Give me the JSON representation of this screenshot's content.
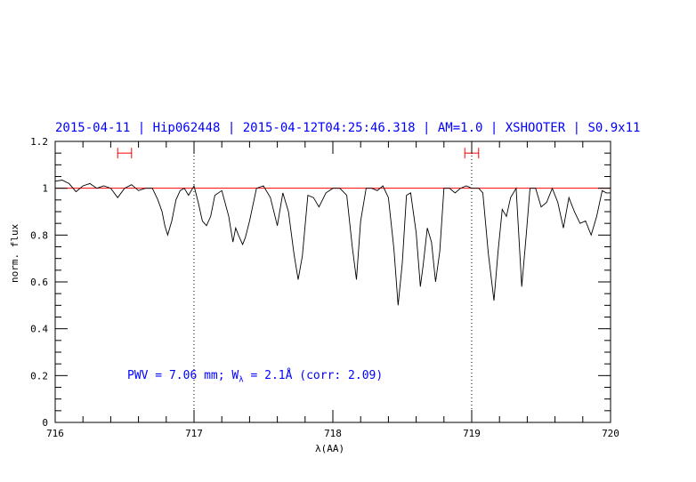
{
  "title": "2015-04-11 | Hip062448 | 2015-04-12T04:25:46.318 | AM=1.0 | XSHOOTER | S0.9x11",
  "annotation": {
    "prefix": "PWV = 7.06 mm; W",
    "subscript": "λ",
    "suffix": " = 2.1Å (corr: 2.09)"
  },
  "colors": {
    "title": "#0000ff",
    "spectrum": "#000000",
    "continuum": "#ff0000",
    "markers": "#ff0000",
    "dotted_lines": "#000000"
  },
  "chart_data": {
    "type": "line",
    "xlabel": "λ(AA)",
    "ylabel": "norm. flux",
    "xlim": [
      716,
      720
    ],
    "ylim": [
      0,
      1.2
    ],
    "xticks": [
      716,
      717,
      718,
      719,
      720
    ],
    "xtick_labels": [
      "716",
      "717",
      "718",
      "719",
      "720"
    ],
    "yticks": [
      0,
      0.2,
      0.4,
      0.6,
      0.8,
      1,
      1.2
    ],
    "ytick_labels": [
      "0",
      "0.2",
      "0.4",
      "0.6",
      "0.8",
      "1",
      "1.2"
    ],
    "reference_line": 1.0,
    "vertical_lines": [
      717,
      719
    ],
    "continuum_intervals": [
      {
        "x": [
          716.45,
          716.55
        ],
        "y": 1.15
      },
      {
        "x": [
          718.95,
          719.05
        ],
        "y": 1.15
      }
    ],
    "series": [
      {
        "x": [
          716.0,
          716.05,
          716.1,
          716.15,
          716.2,
          716.25,
          716.3,
          716.35,
          716.4,
          716.45,
          716.5,
          716.55,
          716.6,
          716.65,
          716.7,
          716.74,
          716.77,
          716.79,
          716.81,
          716.84,
          716.87,
          716.9,
          716.93,
          716.96,
          717.0,
          717.03,
          717.06,
          717.09,
          717.12,
          717.15,
          717.2,
          717.25,
          717.28,
          717.3,
          717.32,
          717.35,
          717.37,
          717.4,
          717.45,
          717.5,
          717.55,
          717.6,
          717.64,
          717.68,
          717.72,
          717.75,
          717.78,
          717.82,
          717.86,
          717.9,
          717.95,
          718.0,
          718.05,
          718.1,
          718.14,
          718.17,
          718.2,
          718.24,
          718.28,
          718.32,
          718.36,
          718.4,
          718.44,
          718.47,
          718.5,
          718.53,
          718.56,
          718.6,
          718.63,
          718.65,
          718.68,
          718.71,
          718.74,
          718.77,
          718.8,
          718.84,
          718.88,
          718.92,
          718.96,
          719.0,
          719.05,
          719.08,
          719.12,
          719.16,
          719.19,
          719.22,
          719.25,
          719.28,
          719.32,
          719.36,
          719.39,
          719.42,
          719.46,
          719.5,
          719.54,
          719.58,
          719.62,
          719.66,
          719.7,
          719.74,
          719.78,
          719.82,
          719.86,
          719.9,
          719.94,
          719.97,
          720.0
        ],
        "y": [
          1.03,
          1.035,
          1.02,
          0.985,
          1.01,
          1.02,
          1.0,
          1.01,
          1.0,
          0.96,
          1.0,
          1.015,
          0.99,
          1.0,
          1.0,
          0.95,
          0.9,
          0.84,
          0.8,
          0.86,
          0.95,
          0.99,
          1.0,
          0.97,
          1.01,
          0.94,
          0.86,
          0.84,
          0.88,
          0.97,
          0.99,
          0.88,
          0.77,
          0.83,
          0.8,
          0.76,
          0.79,
          0.86,
          1.0,
          1.01,
          0.96,
          0.84,
          0.98,
          0.9,
          0.72,
          0.61,
          0.71,
          0.97,
          0.96,
          0.92,
          0.98,
          1.0,
          1.0,
          0.97,
          0.75,
          0.61,
          0.86,
          1.0,
          1.0,
          0.99,
          1.01,
          0.96,
          0.74,
          0.5,
          0.68,
          0.97,
          0.98,
          0.81,
          0.58,
          0.67,
          0.83,
          0.77,
          0.6,
          0.73,
          1.0,
          1.0,
          0.98,
          1.0,
          1.01,
          1.0,
          1.0,
          0.98,
          0.72,
          0.52,
          0.73,
          0.91,
          0.88,
          0.96,
          1.0,
          0.58,
          0.78,
          1.0,
          1.0,
          0.92,
          0.94,
          1.0,
          0.94,
          0.83,
          0.96,
          0.9,
          0.85,
          0.86,
          0.8,
          0.88,
          0.99,
          0.98,
          0.98
        ]
      }
    ]
  }
}
